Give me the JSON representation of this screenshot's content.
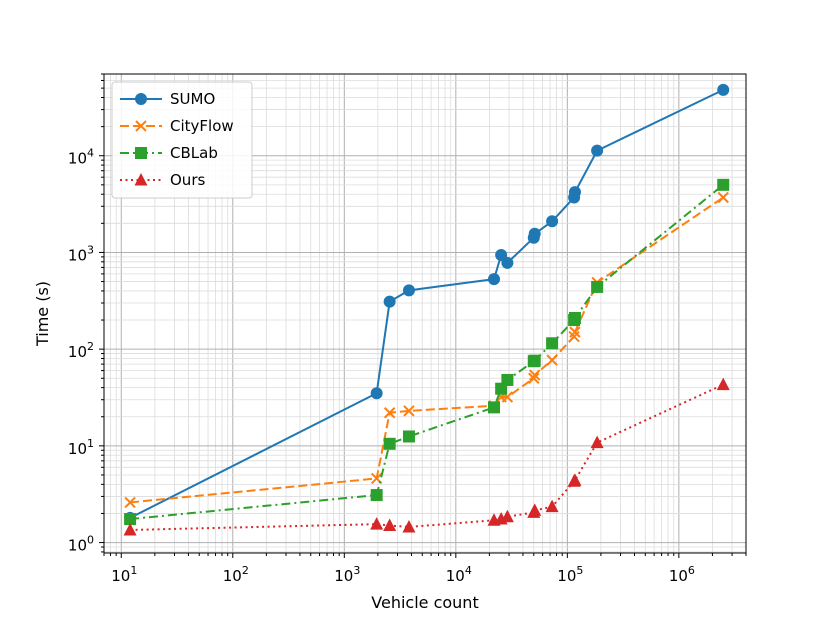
{
  "chart_data": {
    "type": "line",
    "xlabel": "Vehicle count",
    "ylabel": "Time (s)",
    "xscale": "log",
    "yscale": "log",
    "xlim": [
      7,
      4000000
    ],
    "ylim": [
      0.78,
      70000
    ],
    "grid": "major and minor",
    "legend_position": "top-left",
    "x_ticks": [
      {
        "base": "10",
        "exp": "1"
      },
      {
        "base": "10",
        "exp": "2"
      },
      {
        "base": "10",
        "exp": "3"
      },
      {
        "base": "10",
        "exp": "4"
      },
      {
        "base": "10",
        "exp": "5"
      },
      {
        "base": "10",
        "exp": "6"
      }
    ],
    "y_ticks": [
      {
        "base": "10",
        "exp": "0"
      },
      {
        "base": "10",
        "exp": "1"
      },
      {
        "base": "10",
        "exp": "2"
      },
      {
        "base": "10",
        "exp": "3"
      },
      {
        "base": "10",
        "exp": "4"
      }
    ],
    "series": [
      {
        "name": "SUMO",
        "color": "#1f77b4",
        "linestyle": "solid",
        "marker": "circle",
        "x": [
          12,
          1950,
          2550,
          3800,
          22000,
          25500,
          29000,
          50000,
          51000,
          73000,
          115000,
          117000,
          185000,
          2500000
        ],
        "y": [
          1.8,
          35,
          310,
          405,
          530,
          940,
          780,
          1420,
          1560,
          2100,
          3700,
          4200,
          11300,
          48000
        ]
      },
      {
        "name": "CityFlow",
        "color": "#ff7f0e",
        "linestyle": "dashed",
        "marker": "x",
        "x": [
          12,
          1950,
          2550,
          3800,
          22000,
          25500,
          29000,
          50000,
          51000,
          73000,
          115000,
          117000,
          185000,
          2500000
        ],
        "y": [
          2.6,
          4.6,
          22,
          23,
          26,
          32,
          32,
          50,
          54,
          77,
          135,
          150,
          490,
          3700
        ]
      },
      {
        "name": "CBLab",
        "color": "#2ca02c",
        "linestyle": "dashdot",
        "marker": "square",
        "x": [
          12,
          1950,
          2550,
          3800,
          22000,
          25500,
          29000,
          50000,
          51000,
          73000,
          115000,
          117000,
          185000,
          2500000
        ],
        "y": [
          1.75,
          3.1,
          10.5,
          12.5,
          25,
          39,
          48,
          75,
          76,
          115,
          200,
          210,
          440,
          5000
        ]
      },
      {
        "name": "Ours",
        "color": "#d62728",
        "linestyle": "dotted",
        "marker": "triangle",
        "x": [
          12,
          1950,
          2550,
          3800,
          22000,
          25500,
          29000,
          50000,
          51000,
          73000,
          115000,
          117000,
          185000,
          2500000
        ],
        "y": [
          1.35,
          1.55,
          1.5,
          1.45,
          1.7,
          1.75,
          1.85,
          2.05,
          2.15,
          2.35,
          4.3,
          4.4,
          10.8,
          43
        ]
      }
    ]
  }
}
